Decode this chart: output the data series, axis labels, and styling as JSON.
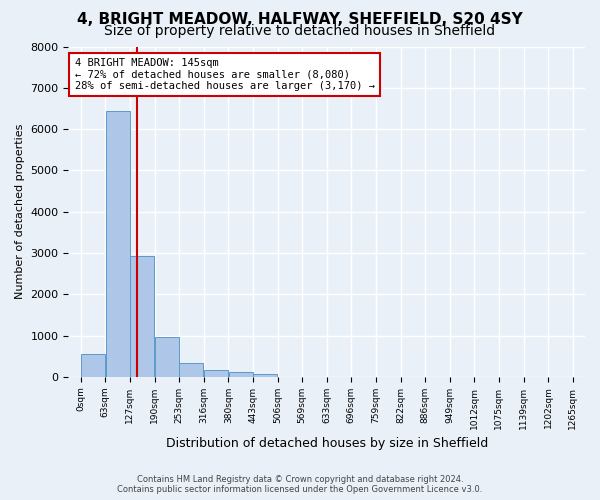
{
  "title": "4, BRIGHT MEADOW, HALFWAY, SHEFFIELD, S20 4SY",
  "subtitle": "Size of property relative to detached houses in Sheffield",
  "xlabel": "Distribution of detached houses by size in Sheffield",
  "ylabel": "Number of detached properties",
  "footer_line1": "Contains HM Land Registry data © Crown copyright and database right 2024.",
  "footer_line2": "Contains public sector information licensed under the Open Government Licence v3.0.",
  "bar_values": [
    550,
    6430,
    2930,
    970,
    340,
    160,
    110,
    80,
    0,
    0,
    0,
    0,
    0,
    0,
    0,
    0,
    0,
    0,
    0
  ],
  "x_labels": [
    "0sqm",
    "63sqm",
    "127sqm",
    "190sqm",
    "253sqm",
    "316sqm",
    "380sqm",
    "443sqm",
    "506sqm",
    "569sqm",
    "633sqm",
    "696sqm",
    "759sqm",
    "822sqm",
    "886sqm",
    "949sqm",
    "1012sqm",
    "1075sqm",
    "1139sqm",
    "1202sqm",
    "1265sqm"
  ],
  "bar_color": "#aec6e8",
  "bar_edge_color": "#5a9bc9",
  "property_line_x": 145,
  "property_label": "4 BRIGHT MEADOW: 145sqm",
  "annotation_line1": "← 72% of detached houses are smaller (8,080)",
  "annotation_line2": "28% of semi-detached houses are larger (3,170) →",
  "annotation_box_color": "#ffffff",
  "annotation_box_edge": "#cc0000",
  "vline_color": "#cc0000",
  "ylim": [
    0,
    8000
  ],
  "yticks": [
    0,
    1000,
    2000,
    3000,
    4000,
    5000,
    6000,
    7000,
    8000
  ],
  "background_color": "#eaf0f8",
  "plot_background": "#eaf0f8",
  "grid_color": "#ffffff",
  "title_fontsize": 11,
  "subtitle_fontsize": 10
}
